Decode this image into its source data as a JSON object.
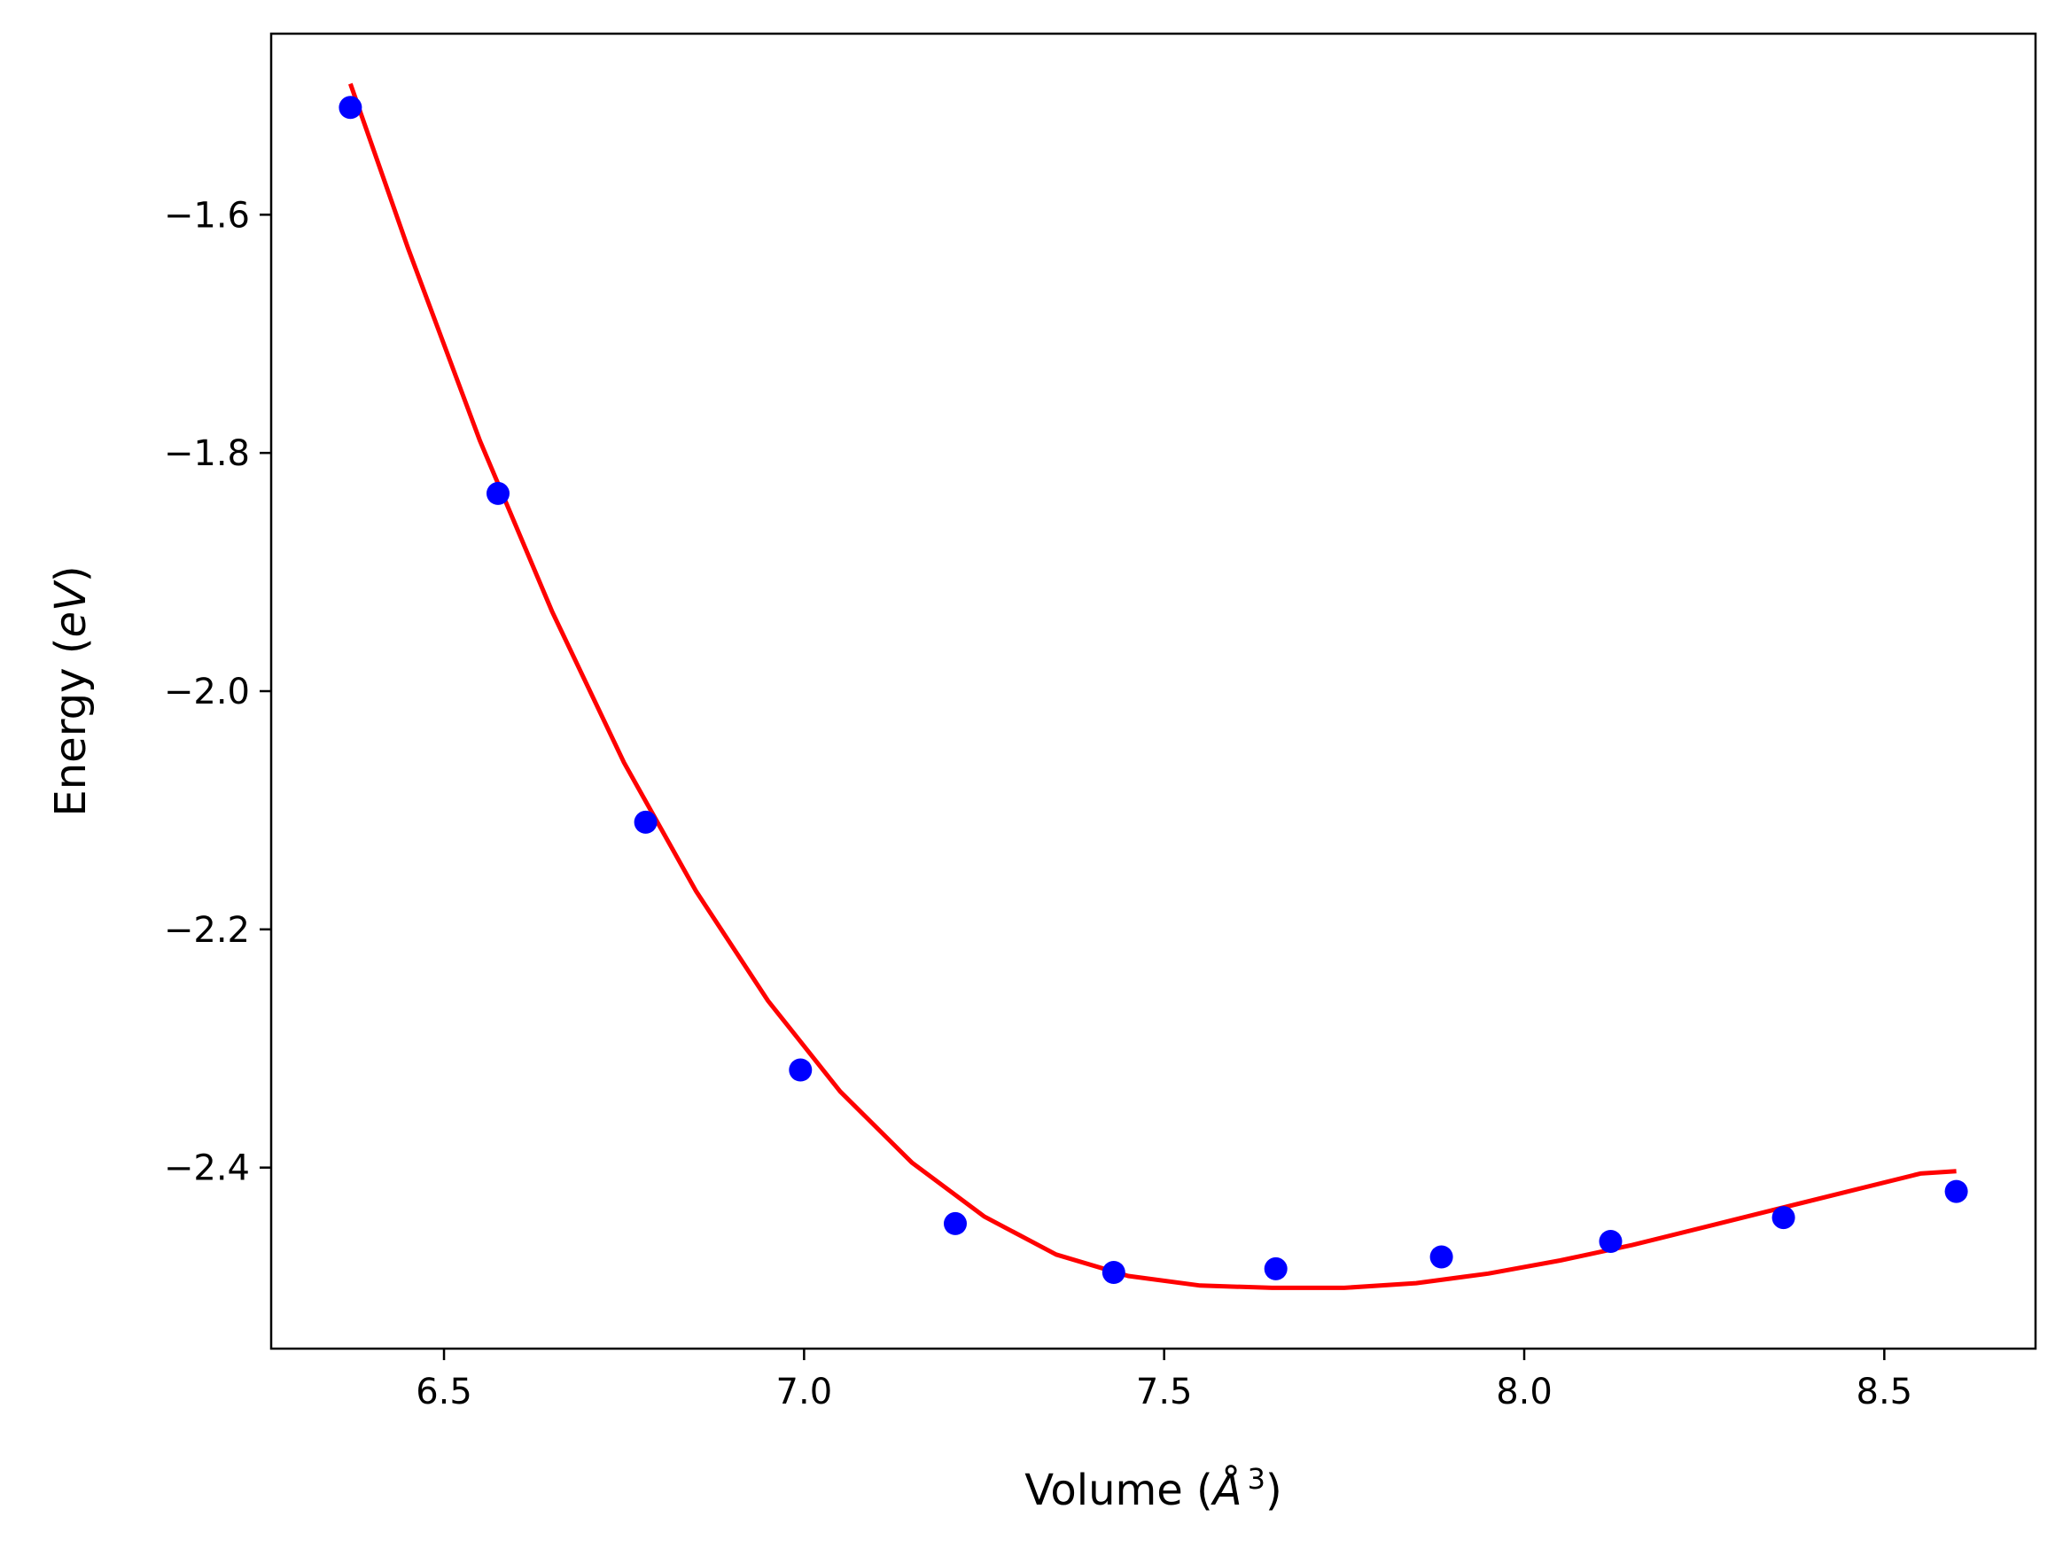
{
  "chart_data": {
    "type": "scatter",
    "title": "",
    "xlabel": {
      "prefix": "Volume (",
      "symbol": "Å",
      "exponent": "3",
      "suffix": ")"
    },
    "ylabel": {
      "prefix": "Energy (",
      "symbol": "eV",
      "suffix": ")"
    },
    "xlim": [
      6.26,
      8.71
    ],
    "ylim": [
      -2.552,
      -1.448
    ],
    "grid": false,
    "xticks": [
      6.5,
      7.0,
      7.5,
      8.0,
      8.5
    ],
    "xtick_labels": [
      "6.5",
      "7.0",
      "7.5",
      "8.0",
      "8.5"
    ],
    "yticks": [
      -1.6,
      -1.8,
      -2.0,
      -2.2,
      -2.4
    ],
    "ytick_labels": [
      "−1.6",
      "−1.8",
      "−2.0",
      "−2.2",
      "−2.4"
    ],
    "series": [
      {
        "kind": "points",
        "color": "#0000ff",
        "x": [
          6.37,
          6.575,
          6.78,
          6.995,
          7.21,
          7.43,
          7.655,
          7.885,
          8.12,
          8.36,
          8.6
        ],
        "y": [
          -1.51,
          -1.834,
          -2.11,
          -2.318,
          -2.447,
          -2.488,
          -2.485,
          -2.475,
          -2.462,
          -2.442,
          -2.42
        ]
      },
      {
        "kind": "fit-curve",
        "color": "#ff0000",
        "x": [
          6.37,
          6.45,
          6.55,
          6.65,
          6.75,
          6.85,
          6.95,
          7.05,
          7.15,
          7.25,
          7.35,
          7.45,
          7.55,
          7.65,
          7.75,
          7.85,
          7.95,
          8.05,
          8.15,
          8.25,
          8.35,
          8.45,
          8.55,
          8.6
        ],
        "y": [
          -1.49,
          -1.628,
          -1.79,
          -1.933,
          -2.06,
          -2.168,
          -2.26,
          -2.336,
          -2.396,
          -2.441,
          -2.473,
          -2.491,
          -2.499,
          -2.501,
          -2.501,
          -2.497,
          -2.489,
          -2.478,
          -2.465,
          -2.45,
          -2.435,
          -2.42,
          -2.405,
          -2.403
        ]
      }
    ]
  }
}
